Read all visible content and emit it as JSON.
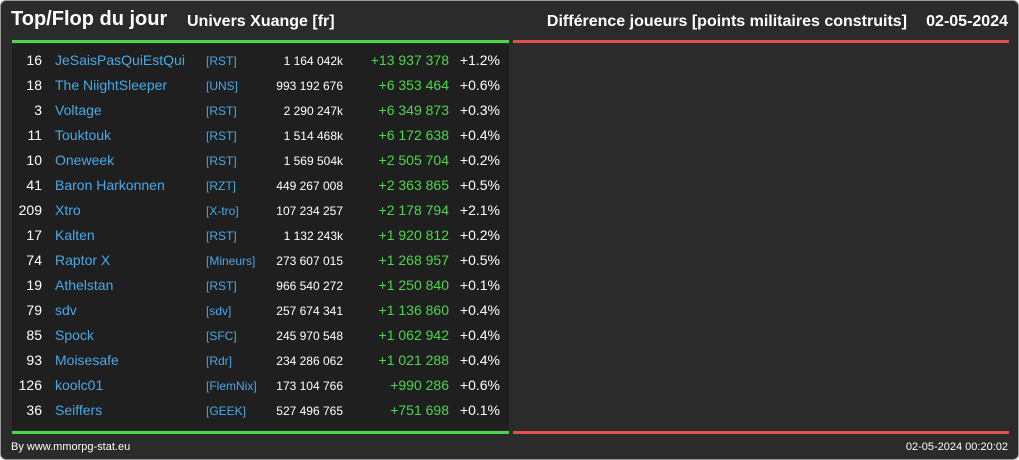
{
  "header": {
    "title": "Top/Flop du jour",
    "univers": "Univers Xuange [fr]",
    "description": "Différence joueurs [points militaires construits]",
    "date": "02-05-2024"
  },
  "rows": [
    {
      "rank": "16",
      "name": "JeSaisPasQuiEstQui",
      "ally": "[RST]",
      "points": "1 164 042k",
      "delta": "+13 937 378",
      "pct": "+1.2%"
    },
    {
      "rank": "18",
      "name": "The NiightSleeper",
      "ally": "[UNS]",
      "points": "993 192 676",
      "delta": "+6 353 464",
      "pct": "+0.6%"
    },
    {
      "rank": "3",
      "name": "Voltage",
      "ally": "[RST]",
      "points": "2 290 247k",
      "delta": "+6 349 873",
      "pct": "+0.3%"
    },
    {
      "rank": "11",
      "name": "Touktouk",
      "ally": "[RST]",
      "points": "1 514 468k",
      "delta": "+6 172 638",
      "pct": "+0.4%"
    },
    {
      "rank": "10",
      "name": "Oneweek",
      "ally": "[RST]",
      "points": "1 569 504k",
      "delta": "+2 505 704",
      "pct": "+0.2%"
    },
    {
      "rank": "41",
      "name": "Baron Harkonnen",
      "ally": "[RZT]",
      "points": "449 267 008",
      "delta": "+2 363 865",
      "pct": "+0.5%"
    },
    {
      "rank": "209",
      "name": "Xtro",
      "ally": "[X-tro]",
      "points": "107 234 257",
      "delta": "+2 178 794",
      "pct": "+2.1%"
    },
    {
      "rank": "17",
      "name": "Kalten",
      "ally": "[RST]",
      "points": "1 132 243k",
      "delta": "+1 920 812",
      "pct": "+0.2%"
    },
    {
      "rank": "74",
      "name": "Raptor X",
      "ally": "[Mineurs]",
      "points": "273 607 015",
      "delta": "+1 268 957",
      "pct": "+0.5%"
    },
    {
      "rank": "19",
      "name": "Athelstan",
      "ally": "[RST]",
      "points": "966 540 272",
      "delta": "+1 250 840",
      "pct": "+0.1%"
    },
    {
      "rank": "79",
      "name": "sdv",
      "ally": "[sdv]",
      "points": "257 674 341",
      "delta": "+1 136 860",
      "pct": "+0.4%"
    },
    {
      "rank": "85",
      "name": "Spock",
      "ally": "[SFC]",
      "points": "245 970 548",
      "delta": "+1 062 942",
      "pct": "+0.4%"
    },
    {
      "rank": "93",
      "name": "Moisesafe",
      "ally": "[Rdr]",
      "points": "234 286 062",
      "delta": "+1 021 288",
      "pct": "+0.4%"
    },
    {
      "rank": "126",
      "name": "koolc01",
      "ally": "[FlemNix]",
      "points": "173 104 766",
      "delta": "+990 286",
      "pct": "+0.6%"
    },
    {
      "rank": "36",
      "name": "Seiffers",
      "ally": "[GEEK]",
      "points": "527 496 765",
      "delta": "+751 698",
      "pct": "+0.1%"
    }
  ],
  "footer": {
    "credit": "By www.mmorpg-stat.eu",
    "timestamp": "02-05-2024 00:20:02"
  },
  "colors": {
    "top": "#4cd64c",
    "flop": "#e05050",
    "link": "#49a8e6"
  }
}
